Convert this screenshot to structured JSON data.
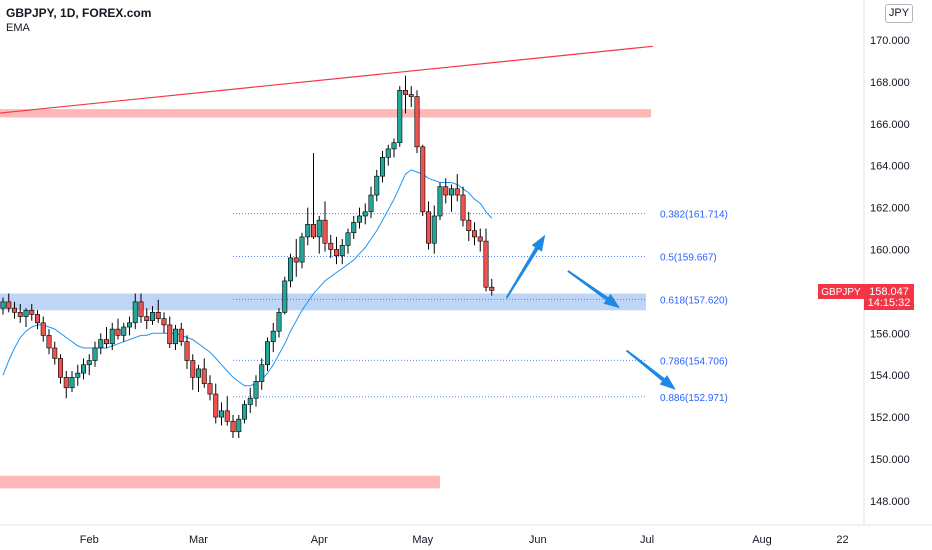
{
  "header": {
    "symbol_line": "GBPJPY, 1D, FOREX.com",
    "indicator": "EMA"
  },
  "currency_button": "JPY",
  "price_tag": {
    "symbol": "GBPJPY",
    "price": "158.047",
    "countdown": "14:15:32",
    "color": "#f23645"
  },
  "colors": {
    "up": "#26a69a",
    "down": "#ef5350",
    "candle_outline": "#000000",
    "ema": "#2196f3",
    "trendline": "#f23645",
    "resistance_zone": "#ffb3b3",
    "support_zone": "#bcd3f5",
    "fib": "#2962ff",
    "arrow": "#1e88e5"
  },
  "chart_data": {
    "type": "candlestick",
    "y_axis": {
      "range": [
        147.2,
        171.4
      ],
      "ticks": [
        "170.000",
        "168.000",
        "166.000",
        "164.000",
        "162.000",
        "160.000",
        "158.000",
        "156.000",
        "154.000",
        "152.000",
        "150.000",
        "148.000"
      ]
    },
    "x_axis": {
      "tick_labels": [
        {
          "label": "Feb",
          "index": 15
        },
        {
          "label": "Mar",
          "index": 34
        },
        {
          "label": "Apr",
          "index": 55
        },
        {
          "label": "May",
          "index": 73
        },
        {
          "label": "Jun",
          "index": 93
        },
        {
          "label": "Jul",
          "index": 112
        },
        {
          "label": "Aug",
          "index": 132
        },
        {
          "label": "22",
          "index": 146
        }
      ]
    },
    "candles": [
      [
        157.2,
        157.7,
        156.9,
        157.5
      ],
      [
        157.5,
        157.9,
        157.0,
        157.2
      ],
      [
        157.2,
        157.5,
        156.7,
        157.0
      ],
      [
        157.0,
        157.4,
        156.5,
        156.8
      ],
      [
        156.8,
        157.2,
        156.3,
        157.1
      ],
      [
        157.1,
        157.4,
        156.6,
        156.9
      ],
      [
        156.9,
        157.1,
        156.2,
        156.5
      ],
      [
        156.5,
        156.8,
        155.6,
        155.9
      ],
      [
        155.9,
        156.2,
        155.0,
        155.3
      ],
      [
        155.3,
        155.6,
        154.5,
        154.8
      ],
      [
        154.8,
        155.0,
        153.6,
        153.9
      ],
      [
        153.9,
        154.2,
        152.9,
        153.4
      ],
      [
        153.4,
        154.2,
        153.2,
        153.9
      ],
      [
        153.9,
        154.5,
        153.5,
        154.1
      ],
      [
        154.1,
        154.8,
        153.8,
        154.5
      ],
      [
        154.5,
        155.0,
        154.0,
        154.7
      ],
      [
        154.7,
        155.6,
        154.4,
        155.3
      ],
      [
        155.3,
        156.0,
        155.0,
        155.7
      ],
      [
        155.7,
        156.3,
        155.3,
        155.5
      ],
      [
        155.5,
        156.5,
        155.2,
        156.2
      ],
      [
        156.2,
        156.7,
        155.7,
        155.9
      ],
      [
        155.9,
        156.5,
        155.6,
        156.3
      ],
      [
        156.3,
        156.8,
        155.9,
        156.5
      ],
      [
        156.5,
        157.9,
        156.2,
        157.5
      ],
      [
        157.5,
        157.9,
        156.5,
        156.8
      ],
      [
        156.8,
        157.2,
        156.2,
        156.6
      ],
      [
        156.6,
        157.3,
        156.4,
        157.0
      ],
      [
        157.0,
        157.6,
        156.5,
        156.7
      ],
      [
        156.7,
        157.0,
        156.0,
        156.4
      ],
      [
        156.4,
        156.8,
        155.3,
        155.5
      ],
      [
        155.5,
        156.4,
        155.2,
        156.2
      ],
      [
        156.2,
        156.5,
        155.4,
        155.6
      ],
      [
        155.6,
        155.9,
        154.3,
        154.7
      ],
      [
        154.7,
        155.0,
        153.3,
        153.9
      ],
      [
        153.9,
        154.5,
        153.2,
        154.3
      ],
      [
        154.3,
        154.8,
        153.4,
        153.6
      ],
      [
        153.6,
        154.0,
        152.8,
        153.1
      ],
      [
        153.1,
        153.6,
        151.7,
        152.0
      ],
      [
        152.0,
        152.7,
        151.6,
        152.3
      ],
      [
        152.3,
        153.0,
        151.6,
        151.8
      ],
      [
        151.8,
        152.1,
        151.0,
        151.3
      ],
      [
        151.3,
        152.1,
        151.0,
        151.9
      ],
      [
        151.9,
        152.8,
        151.7,
        152.6
      ],
      [
        152.6,
        153.4,
        152.2,
        152.9
      ],
      [
        152.9,
        154.0,
        152.5,
        153.7
      ],
      [
        153.7,
        154.8,
        153.3,
        154.5
      ],
      [
        154.5,
        155.8,
        154.2,
        155.6
      ],
      [
        155.6,
        156.5,
        155.1,
        156.1
      ],
      [
        156.1,
        157.2,
        155.8,
        157.0
      ],
      [
        157.0,
        158.7,
        156.9,
        158.5
      ],
      [
        158.5,
        159.8,
        158.2,
        159.6
      ],
      [
        159.6,
        160.5,
        158.7,
        159.4
      ],
      [
        159.4,
        160.8,
        159.1,
        160.6
      ],
      [
        160.6,
        162.0,
        160.2,
        161.2
      ],
      [
        161.2,
        164.6,
        160.5,
        160.6
      ],
      [
        160.6,
        161.6,
        159.8,
        161.4
      ],
      [
        161.4,
        162.3,
        159.9,
        160.3
      ],
      [
        160.3,
        160.7,
        159.6,
        160.0
      ],
      [
        160.0,
        160.6,
        159.3,
        159.7
      ],
      [
        159.7,
        160.5,
        159.3,
        160.2
      ],
      [
        160.2,
        161.0,
        159.8,
        160.8
      ],
      [
        160.8,
        161.6,
        160.5,
        161.3
      ],
      [
        161.3,
        162.0,
        161.0,
        161.6
      ],
      [
        161.6,
        162.2,
        161.2,
        161.8
      ],
      [
        161.8,
        163.0,
        161.5,
        162.6
      ],
      [
        162.6,
        163.8,
        162.3,
        163.5
      ],
      [
        163.5,
        164.7,
        163.2,
        164.4
      ],
      [
        164.4,
        165.0,
        164.0,
        164.8
      ],
      [
        164.8,
        165.3,
        164.4,
        165.1
      ],
      [
        165.1,
        167.8,
        164.9,
        167.6
      ],
      [
        167.6,
        168.3,
        166.5,
        167.4
      ],
      [
        167.4,
        167.8,
        166.8,
        167.3
      ],
      [
        167.3,
        167.6,
        164.6,
        164.9
      ],
      [
        164.9,
        165.0,
        161.6,
        161.8
      ],
      [
        161.8,
        162.3,
        160.0,
        160.3
      ],
      [
        160.3,
        162.1,
        159.8,
        161.6
      ],
      [
        161.6,
        163.2,
        161.4,
        163.0
      ],
      [
        163.0,
        163.4,
        162.2,
        162.6
      ],
      [
        162.6,
        163.1,
        161.8,
        162.9
      ],
      [
        162.9,
        163.6,
        162.3,
        162.6
      ],
      [
        162.6,
        163.0,
        161.1,
        161.4
      ],
      [
        161.4,
        161.8,
        160.4,
        160.9
      ],
      [
        160.9,
        161.3,
        160.2,
        160.6
      ],
      [
        160.6,
        161.0,
        159.9,
        160.4
      ],
      [
        160.4,
        161.0,
        158.0,
        158.2
      ],
      [
        158.2,
        158.6,
        157.8,
        158.047
      ]
    ],
    "ema": {
      "name": "EMA",
      "values": [
        154.0,
        154.7,
        155.3,
        155.8,
        156.1,
        156.3,
        156.4,
        156.4,
        156.3,
        156.2,
        156.0,
        155.8,
        155.6,
        155.4,
        155.3,
        155.3,
        155.3,
        155.3,
        155.3,
        155.4,
        155.5,
        155.6,
        155.7,
        155.8,
        155.9,
        155.9,
        156.0,
        156.0,
        156.0,
        156.0,
        156.0,
        155.9,
        155.8,
        155.7,
        155.5,
        155.3,
        155.1,
        154.8,
        154.5,
        154.2,
        153.9,
        153.7,
        153.5,
        153.5,
        153.6,
        153.8,
        154.1,
        154.5,
        155.0,
        155.5,
        156.1,
        156.6,
        157.1,
        157.5,
        157.9,
        158.2,
        158.5,
        158.7,
        158.9,
        159.1,
        159.3,
        159.5,
        159.8,
        160.1,
        160.5,
        160.9,
        161.4,
        161.9,
        162.4,
        163.0,
        163.6,
        163.8,
        163.7,
        163.6,
        163.4,
        163.3,
        163.2,
        163.2,
        163.2,
        163.1,
        162.9,
        162.7,
        162.4,
        162.2,
        161.8,
        161.5
      ]
    },
    "fib_levels": [
      {
        "label": "0.382(161.714)",
        "value": 161.714
      },
      {
        "label": "0.5(159.667)",
        "value": 159.667
      },
      {
        "label": "0.618(157.620)",
        "value": 157.62
      },
      {
        "label": "0.786(154.706)",
        "value": 154.706
      },
      {
        "label": "0.886(152.971)",
        "value": 152.971
      }
    ],
    "zones": [
      {
        "name": "resistance",
        "from": 166.3,
        "to": 166.7,
        "color": "#ffb3b3"
      },
      {
        "name": "support",
        "from": 157.1,
        "to": 157.9,
        "color": "#bcd3f5"
      },
      {
        "name": "lower-resistance",
        "from": 148.6,
        "to": 149.2,
        "color": "#ffb3b3"
      }
    ],
    "trendline": {
      "start": {
        "index": -1,
        "value": 166.5
      },
      "end": {
        "index": 113,
        "value": 169.7
      }
    },
    "arrows": [
      {
        "from": {
          "index": 87.5,
          "value": 157.7
        },
        "to": {
          "index": 94.3,
          "value": 160.7
        }
      },
      {
        "from": {
          "index": 98.3,
          "value": 159.0
        },
        "to": {
          "index": 107.3,
          "value": 157.2
        }
      },
      {
        "from": {
          "index": 108.5,
          "value": 155.2
        },
        "to": {
          "index": 117,
          "value": 153.3
        }
      }
    ]
  }
}
